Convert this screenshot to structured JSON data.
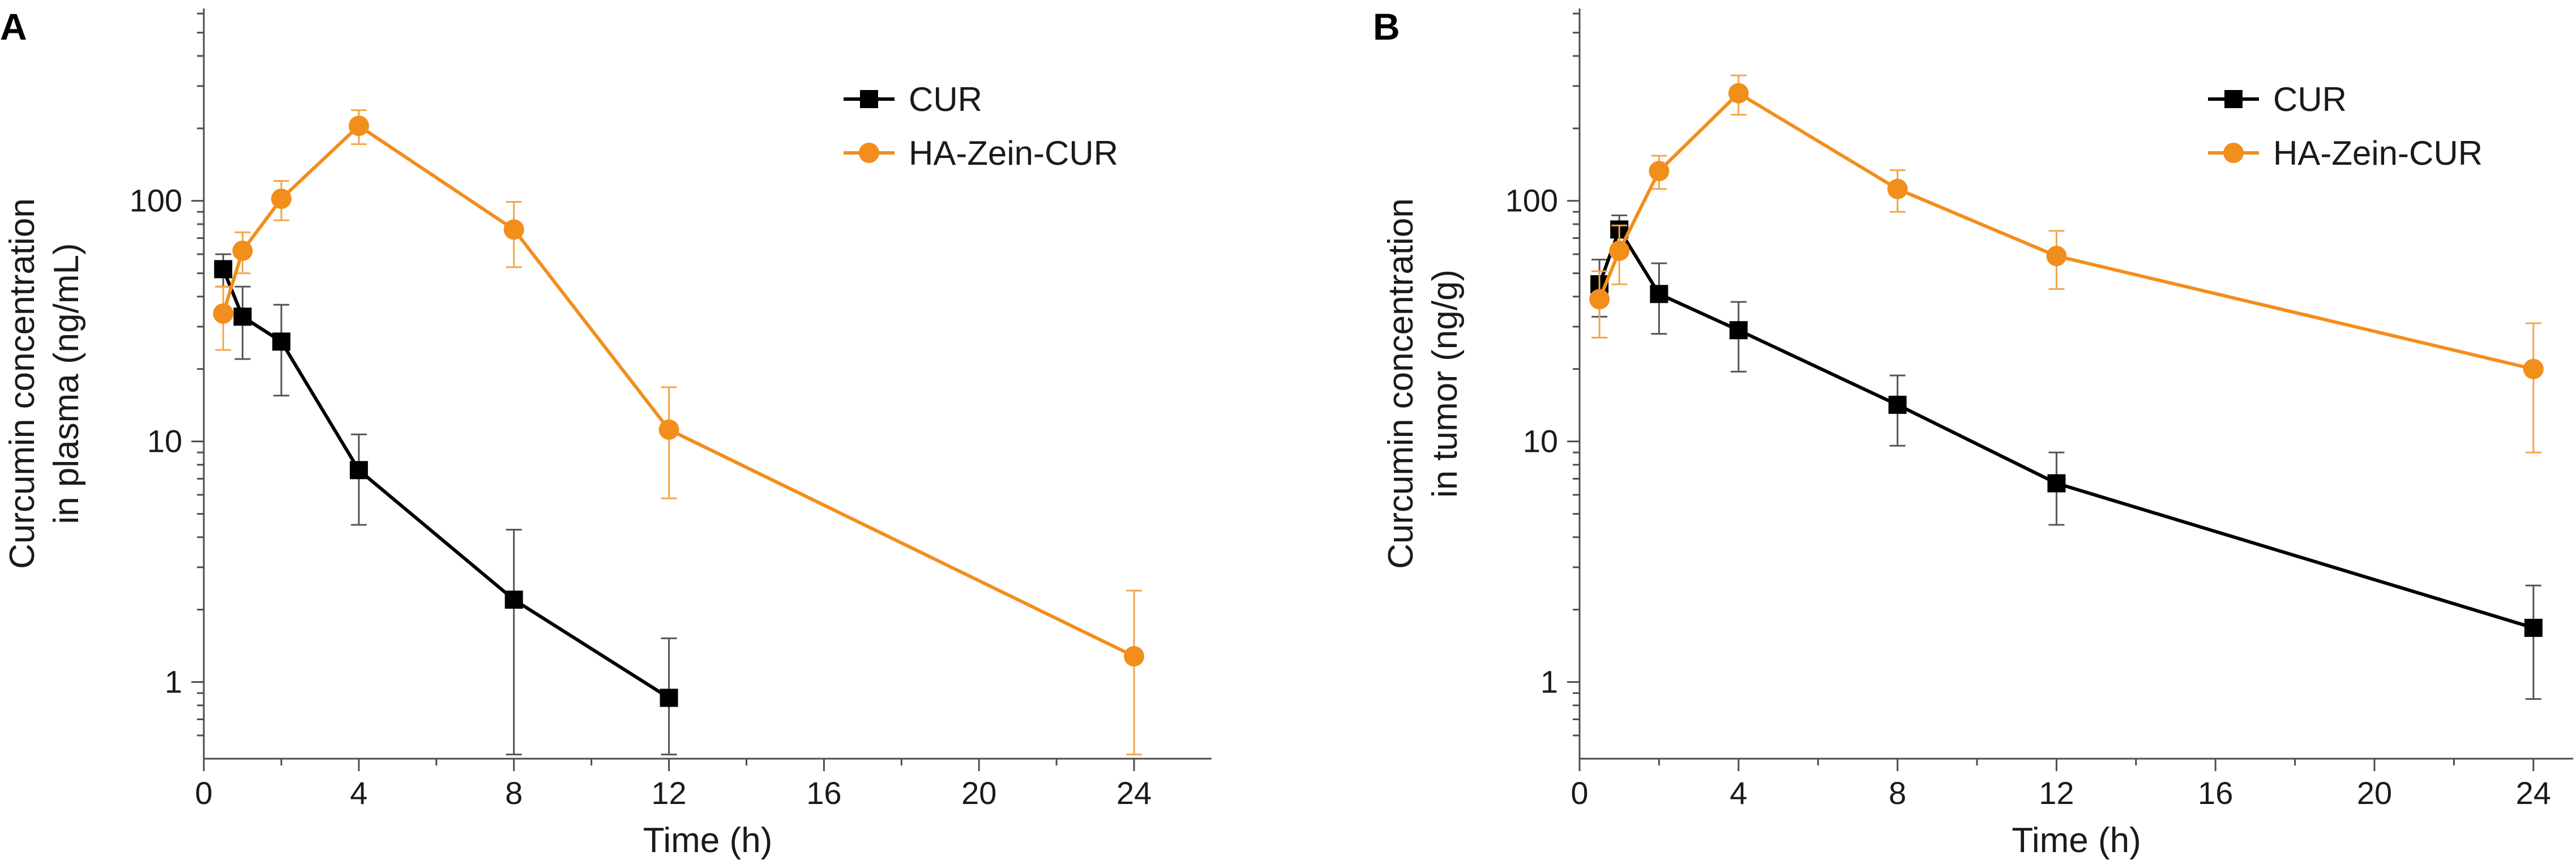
{
  "colors": {
    "cur": "#000000",
    "ha_zein_cur": "#f28e1c",
    "cur_err": "#555555",
    "ha_err": "#f2a64a"
  },
  "chart_data": [
    {
      "type": "line",
      "panel_label": "A",
      "title": "",
      "xlabel": "Time (h)",
      "ylabel_line1": "Curcumin concentration",
      "ylabel_line2": "in plasma (ng/mL)",
      "xlim": [
        0,
        26
      ],
      "ylim": [
        0.55,
        630
      ],
      "yscale": "log",
      "xticks": [
        0,
        4,
        8,
        12,
        16,
        20,
        24
      ],
      "xtick_labels": [
        "0",
        "4",
        "8",
        "12",
        "16",
        "20",
        "24"
      ],
      "yticks": [
        1,
        10,
        100
      ],
      "ytick_labels": [
        "1",
        "10",
        "100"
      ],
      "legend_position": "top-right",
      "series": [
        {
          "name": "CUR",
          "marker": "square",
          "color_key": "cur",
          "x": [
            0.5,
            1,
            2,
            4,
            8,
            12
          ],
          "y": [
            52,
            33,
            26,
            7.6,
            2.2,
            0.86
          ],
          "err_low": [
            44,
            22,
            15.5,
            4.5,
            0.5,
            0.5
          ],
          "err_high": [
            60,
            44,
            37,
            10.7,
            4.3,
            1.52
          ]
        },
        {
          "name": "HA-Zein-CUR",
          "marker": "circle",
          "color_key": "ha_zein_cur",
          "x": [
            0.5,
            1,
            2,
            4,
            8,
            12,
            24
          ],
          "y": [
            34,
            62,
            102,
            205,
            76,
            11.2,
            1.28
          ],
          "err_low": [
            24,
            50,
            83,
            172,
            53,
            5.8,
            0.5
          ],
          "err_high": [
            44,
            74,
            121,
            238,
            99,
            16.8,
            2.4
          ]
        }
      ]
    },
    {
      "type": "line",
      "panel_label": "B",
      "title": "",
      "xlabel": "Time (h)",
      "ylabel_line1": "Curcumin concentration",
      "ylabel_line2": "in tumor (ng/g)",
      "xlim": [
        0,
        25
      ],
      "ylim": [
        0.55,
        630
      ],
      "yscale": "log",
      "xticks": [
        0,
        4,
        8,
        12,
        16,
        20,
        24
      ],
      "xtick_labels": [
        "0",
        "4",
        "8",
        "12",
        "16",
        "20",
        "24"
      ],
      "yticks": [
        1,
        10,
        100
      ],
      "ytick_labels": [
        "1",
        "10",
        "100"
      ],
      "legend_position": "top-right",
      "series": [
        {
          "name": "CUR",
          "marker": "square",
          "color_key": "cur",
          "x": [
            0.5,
            1,
            2,
            4,
            8,
            12,
            24
          ],
          "y": [
            45,
            76,
            41,
            29,
            14.2,
            6.7,
            1.68
          ],
          "err_low": [
            33,
            65,
            28,
            19.5,
            9.6,
            4.5,
            0.85
          ],
          "err_high": [
            57,
            87,
            55,
            38,
            18.8,
            9,
            2.52
          ]
        },
        {
          "name": "HA-Zein-CUR",
          "marker": "circle",
          "color_key": "ha_zein_cur",
          "x": [
            0.5,
            1,
            2,
            4,
            8,
            12,
            24
          ],
          "y": [
            39,
            62,
            133,
            280,
            112,
            59,
            20
          ],
          "err_low": [
            27,
            45,
            112,
            228,
            90,
            43,
            9
          ],
          "err_high": [
            51,
            79,
            154,
            332,
            134,
            75,
            31
          ]
        }
      ]
    }
  ]
}
